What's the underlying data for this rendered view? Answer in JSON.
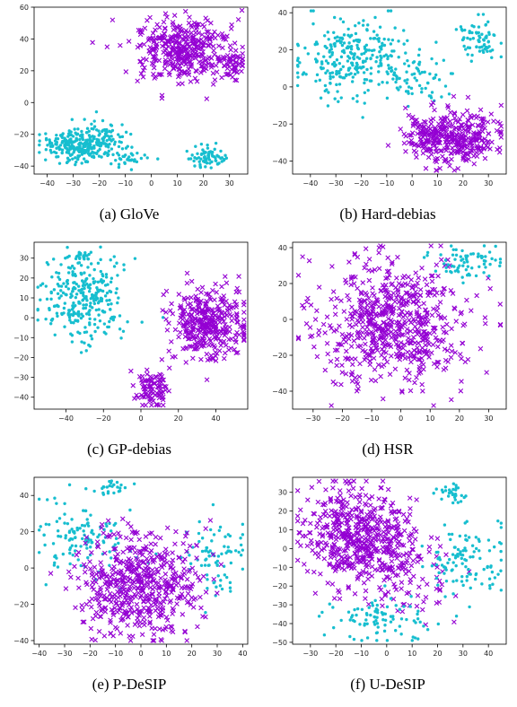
{
  "colors": {
    "female_marker": "#17becf",
    "male_marker": "#9400d3",
    "axis": "#000000"
  },
  "panels": [
    {
      "caption": "(a) GloVe",
      "chart_data": {
        "type": "scatter",
        "xlim": [
          -45,
          37
        ],
        "ylim": [
          -45,
          60
        ],
        "xticks": [
          -40,
          -30,
          -20,
          -10,
          0,
          10,
          20,
          30
        ],
        "yticks": [
          -40,
          -20,
          0,
          20,
          40,
          60
        ],
        "series": [
          {
            "marker": "dot",
            "color": "#17becf",
            "clusters": [
              {
                "cx": -28,
                "cy": -27,
                "sx": 6,
                "sy": 5,
                "n": 260
              },
              {
                "cx": -16,
                "cy": -22,
                "sx": 5,
                "sy": 6,
                "n": 60
              },
              {
                "cx": -8,
                "cy": -36,
                "sx": 5,
                "sy": 3,
                "n": 30
              },
              {
                "cx": 22,
                "cy": -34,
                "sx": 4,
                "sy": 4,
                "n": 70
              }
            ]
          },
          {
            "marker": "x",
            "color": "#9400d3",
            "clusters": [
              {
                "cx": 12,
                "cy": 34,
                "sx": 9,
                "sy": 10,
                "n": 380
              },
              {
                "cx": 31,
                "cy": 24,
                "sx": 2.5,
                "sy": 5,
                "n": 50
              }
            ]
          }
        ]
      }
    },
    {
      "caption": "(b) Hard-debias",
      "chart_data": {
        "type": "scatter",
        "xlim": [
          -47,
          37
        ],
        "ylim": [
          -47,
          43
        ],
        "xticks": [
          -40,
          -30,
          -20,
          -10,
          0,
          10,
          20,
          30
        ],
        "yticks": [
          -40,
          -20,
          0,
          20,
          40
        ],
        "series": [
          {
            "marker": "dot",
            "color": "#17becf",
            "clusters": [
              {
                "cx": -22,
                "cy": 15,
                "sx": 12,
                "sy": 11,
                "n": 300
              },
              {
                "cx": 26,
                "cy": 25,
                "sx": 4,
                "sy": 5,
                "n": 70
              },
              {
                "cx": 5,
                "cy": 2,
                "sx": 6,
                "sy": 6,
                "n": 40
              }
            ]
          },
          {
            "marker": "x",
            "color": "#9400d3",
            "clusters": [
              {
                "cx": 15,
                "cy": -27,
                "sx": 10,
                "sy": 7,
                "n": 380
              }
            ]
          }
        ]
      }
    },
    {
      "caption": "(c) GP-debias",
      "chart_data": {
        "type": "scatter",
        "xlim": [
          -57,
          57
        ],
        "ylim": [
          -46,
          38
        ],
        "xticks": [
          -40,
          -20,
          0,
          20,
          40
        ],
        "yticks": [
          -40,
          -30,
          -20,
          -10,
          0,
          10,
          20,
          30
        ],
        "series": [
          {
            "marker": "dot",
            "color": "#17becf",
            "clusters": [
              {
                "cx": -30,
                "cy": 8,
                "sx": 11,
                "sy": 11,
                "n": 300
              },
              {
                "cx": -32,
                "cy": 31,
                "sx": 2,
                "sy": 1.5,
                "n": 20
              }
            ]
          },
          {
            "marker": "x",
            "color": "#9400d3",
            "clusters": [
              {
                "cx": 36,
                "cy": -3,
                "sx": 10,
                "sy": 9,
                "n": 360
              },
              {
                "cx": 6,
                "cy": -36,
                "sx": 4,
                "sy": 4,
                "n": 90
              }
            ]
          }
        ]
      }
    },
    {
      "caption": "(d) HSR",
      "chart_data": {
        "type": "scatter",
        "xlim": [
          -37,
          36
        ],
        "ylim": [
          -50,
          43
        ],
        "xticks": [
          -30,
          -20,
          -10,
          0,
          10,
          20,
          30
        ],
        "yticks": [
          -40,
          -20,
          0,
          20,
          40
        ],
        "series": [
          {
            "marker": "x",
            "color": "#9400d3",
            "clusters": [
              {
                "cx": -3,
                "cy": -2,
                "sx": 13,
                "sy": 17,
                "n": 650
              }
            ]
          },
          {
            "marker": "dot",
            "color": "#17becf",
            "clusters": [
              {
                "cx": 23,
                "cy": 32,
                "sx": 6,
                "sy": 5,
                "n": 70
              }
            ]
          }
        ]
      }
    },
    {
      "caption": "(e) P-DeSIP",
      "chart_data": {
        "type": "scatter",
        "xlim": [
          -42,
          42
        ],
        "ylim": [
          -42,
          50
        ],
        "xticks": [
          -40,
          -30,
          -20,
          -10,
          0,
          10,
          20,
          30,
          40
        ],
        "yticks": [
          -40,
          -20,
          0,
          20,
          40
        ],
        "series": [
          {
            "marker": "dot",
            "color": "#17becf",
            "clusters": [
              {
                "cx": -22,
                "cy": 15,
                "sx": 10,
                "sy": 10,
                "n": 120
              },
              {
                "cx": 28,
                "cy": 5,
                "sx": 7,
                "sy": 10,
                "n": 80
              },
              {
                "cx": -12,
                "cy": 44,
                "sx": 4,
                "sy": 2,
                "n": 25
              }
            ]
          },
          {
            "marker": "x",
            "color": "#9400d3",
            "clusters": [
              {
                "cx": 0,
                "cy": -8,
                "sx": 12,
                "sy": 14,
                "n": 560
              }
            ]
          }
        ]
      }
    },
    {
      "caption": "(f) U-DeSIP",
      "chart_data": {
        "type": "scatter",
        "xlim": [
          -37,
          47
        ],
        "ylim": [
          -51,
          38
        ],
        "xticks": [
          -30,
          -20,
          -10,
          0,
          10,
          20,
          30,
          40
        ],
        "yticks": [
          -50,
          -40,
          -30,
          -20,
          -10,
          0,
          10,
          20,
          30
        ],
        "series": [
          {
            "marker": "x",
            "color": "#9400d3",
            "clusters": [
              {
                "cx": -12,
                "cy": 8,
                "sx": 10,
                "sy": 12,
                "n": 480
              },
              {
                "cx": 5,
                "cy": -12,
                "sx": 10,
                "sy": 12,
                "n": 140
              }
            ]
          },
          {
            "marker": "dot",
            "color": "#17becf",
            "clusters": [
              {
                "cx": 32,
                "cy": -5,
                "sx": 8,
                "sy": 10,
                "n": 110
              },
              {
                "cx": 26,
                "cy": 30,
                "sx": 3,
                "sy": 3,
                "n": 30
              },
              {
                "cx": -2,
                "cy": -38,
                "sx": 10,
                "sy": 6,
                "n": 90
              }
            ]
          }
        ]
      }
    }
  ]
}
